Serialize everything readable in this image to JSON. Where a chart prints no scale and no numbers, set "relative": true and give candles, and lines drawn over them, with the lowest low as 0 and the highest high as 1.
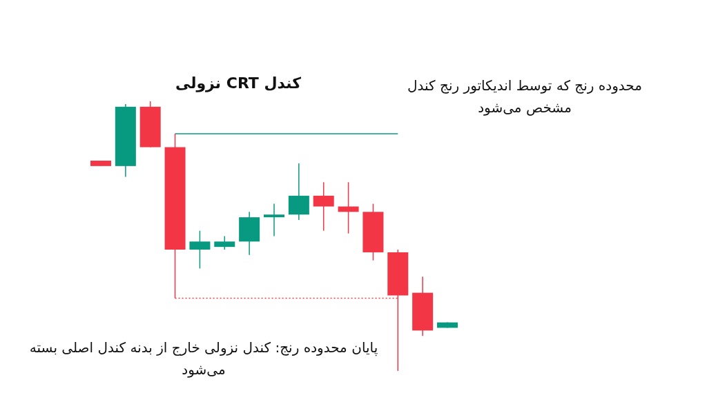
{
  "chart_data": {
    "type": "candlestick",
    "relative": true,
    "title": "کندل CRT نزولی",
    "categories": [
      null,
      null,
      null,
      null,
      null,
      null,
      null,
      null,
      null,
      null,
      null,
      null,
      null,
      null,
      null
    ],
    "ohlc": [
      [
        0.78,
        0.78,
        0.76,
        0.76
      ],
      [
        0.76,
        0.99,
        0.72,
        0.98
      ],
      [
        0.98,
        1,
        0.83,
        0.83
      ],
      [
        0.83,
        0.88,
        0.27,
        0.45
      ],
      [
        0.45,
        0.52,
        0.38,
        0.48
      ],
      [
        0.46,
        0.5,
        0.45,
        0.48
      ],
      [
        0.48,
        0.59,
        0.43,
        0.57
      ],
      [
        0.57,
        0.62,
        0.5,
        0.58
      ],
      [
        0.58,
        0.77,
        0.56,
        0.65
      ],
      [
        0.65,
        0.7,
        0.52,
        0.61
      ],
      [
        0.61,
        0.7,
        0.51,
        0.59
      ],
      [
        0.59,
        0.62,
        0.41,
        0.44
      ],
      [
        0.44,
        0.45,
        0,
        0.28
      ],
      [
        0.29,
        0.35,
        0.13,
        0.15
      ],
      [
        0.16,
        0.18,
        0.16,
        0.18
      ]
    ],
    "colors": [
      "#f23645",
      "#089981",
      "#f23645",
      "#f23645",
      "#089981",
      "#089981",
      "#089981",
      "#089981",
      "#089981",
      "#f23645",
      "#f23645",
      "#f23645",
      "#f23645",
      "#f23645",
      "#089981"
    ],
    "ref_lines": [
      {
        "axis": "y",
        "value": 0.88,
        "color": "#089981",
        "line_style": "solid"
      },
      {
        "axis": "y",
        "value": 0.27,
        "color": "#f23645",
        "line_style": "dotted"
      }
    ],
    "annotations": [
      "محدوده رنج که توسط اندیکاتور رنج کندل مشخص می‌شود",
      "پایان محدوده رنج: کندل نزولی خارج از بدنه کندل اصلی بسته می‌شود"
    ]
  }
}
